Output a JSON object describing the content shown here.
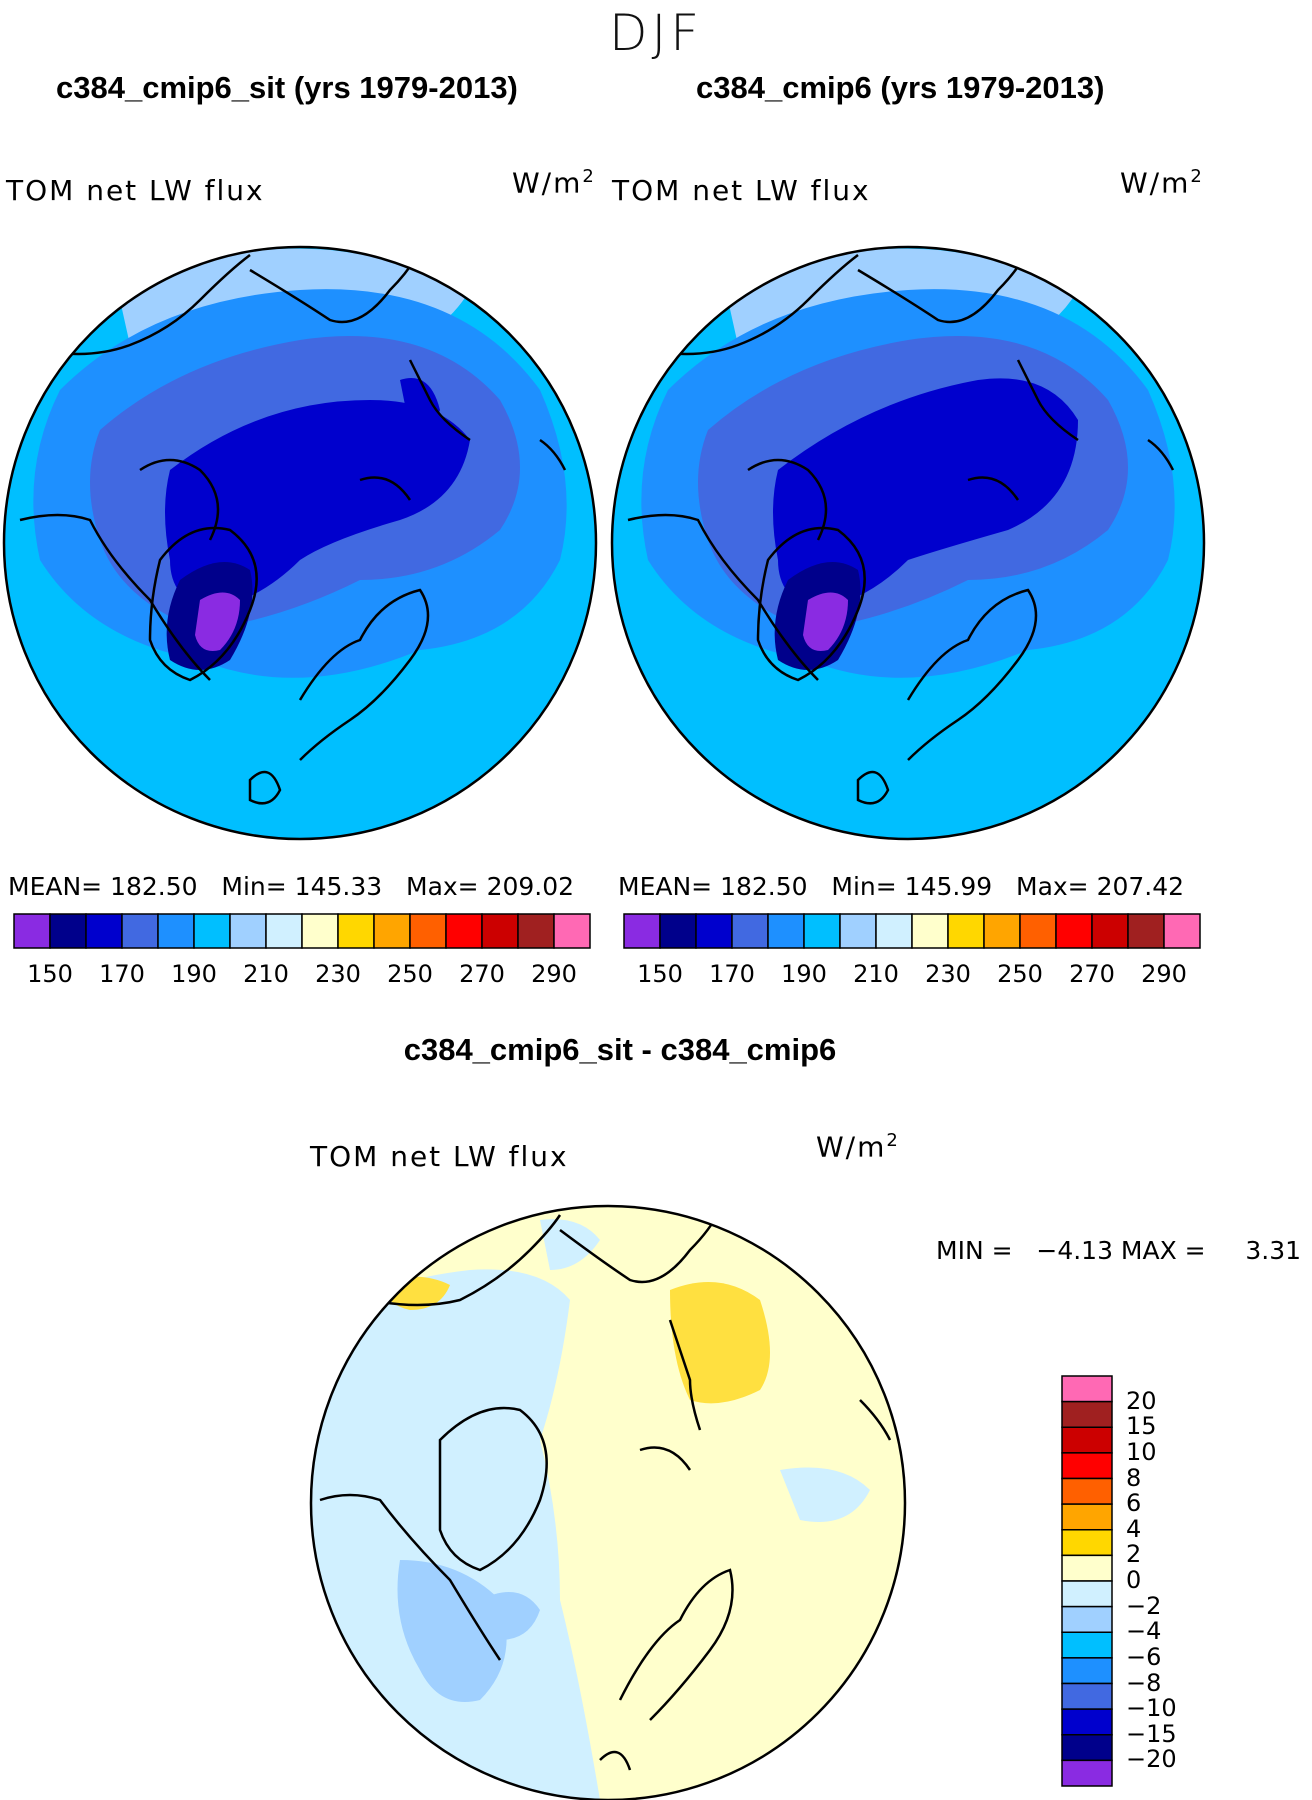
{
  "season": "DJF",
  "panels": [
    {
      "title": "c384_cmip6_sit (yrs 1979-2013)",
      "variable": "TOM net LW flux",
      "units": "W/m",
      "units_exp": "2",
      "stats": {
        "mean_label": "MEAN=",
        "mean": "182.50",
        "min_label": "Min=",
        "min": "145.33",
        "max_label": "Max=",
        "max": "209.02"
      }
    },
    {
      "title": "c384_cmip6 (yrs 1979-2013)",
      "variable": "TOM net LW flux",
      "units": "W/m",
      "units_exp": "2",
      "stats": {
        "mean_label": "MEAN=",
        "mean": "182.50",
        "min_label": "Min=",
        "min": "145.99",
        "max_label": "Max=",
        "max": "207.42"
      }
    }
  ],
  "diff_panel": {
    "title": "c384_cmip6_sit - c384_cmip6",
    "variable": "TOM net LW flux",
    "units": "W/m",
    "units_exp": "2",
    "minmax_text": "MIN =   −4.13 MAX =     3.31"
  },
  "chart_data": [
    {
      "type": "heatmap",
      "title": "c384_cmip6_sit (yrs 1979-2013)",
      "projection": "north polar stereographic",
      "variable": "TOM net LW flux",
      "units": "W/m2",
      "mean": 182.5,
      "min": 145.33,
      "max": 209.02,
      "colorbar": {
        "colors": [
          "#8a2be2",
          "#00008b",
          "#0000cd",
          "#4169e1",
          "#1e90ff",
          "#00bfff",
          "#a0d0ff",
          "#d0f0ff",
          "#ffffcc",
          "#ffd700",
          "#ffa500",
          "#ff6000",
          "#ff0000",
          "#cc0000",
          "#a02020",
          "#ff69b4"
        ],
        "tick_labels": [
          "150",
          "170",
          "190",
          "210",
          "230",
          "250",
          "270",
          "290"
        ]
      }
    },
    {
      "type": "heatmap",
      "title": "c384_cmip6 (yrs 1979-2013)",
      "projection": "north polar stereographic",
      "variable": "TOM net LW flux",
      "units": "W/m2",
      "mean": 182.5,
      "min": 145.99,
      "max": 207.42,
      "colorbar": {
        "colors": [
          "#8a2be2",
          "#00008b",
          "#0000cd",
          "#4169e1",
          "#1e90ff",
          "#00bfff",
          "#a0d0ff",
          "#d0f0ff",
          "#ffffcc",
          "#ffd700",
          "#ffa500",
          "#ff6000",
          "#ff0000",
          "#cc0000",
          "#a02020",
          "#ff69b4"
        ],
        "tick_labels": [
          "150",
          "170",
          "190",
          "210",
          "230",
          "250",
          "270",
          "290"
        ]
      }
    },
    {
      "type": "heatmap",
      "title": "c384_cmip6_sit - c384_cmip6",
      "projection": "north polar stereographic",
      "variable": "TOM net LW flux",
      "units": "W/m2",
      "min": -4.13,
      "max": 3.31,
      "colorbar": {
        "orientation": "vertical",
        "colors_top_to_bottom": [
          "#ff69b4",
          "#a02020",
          "#cc0000",
          "#ff0000",
          "#ff6000",
          "#ffa500",
          "#ffd700",
          "#ffffcc",
          "#d0f0ff",
          "#a0d0ff",
          "#00bfff",
          "#1e90ff",
          "#4169e1",
          "#0000cd",
          "#00008b",
          "#8a2be2"
        ],
        "tick_labels_top_to_bottom": [
          "20",
          "15",
          "10",
          "8",
          "6",
          "4",
          "2",
          "0",
          "−2",
          "−4",
          "−6",
          "−8",
          "−10",
          "−15",
          "−20"
        ]
      }
    }
  ]
}
